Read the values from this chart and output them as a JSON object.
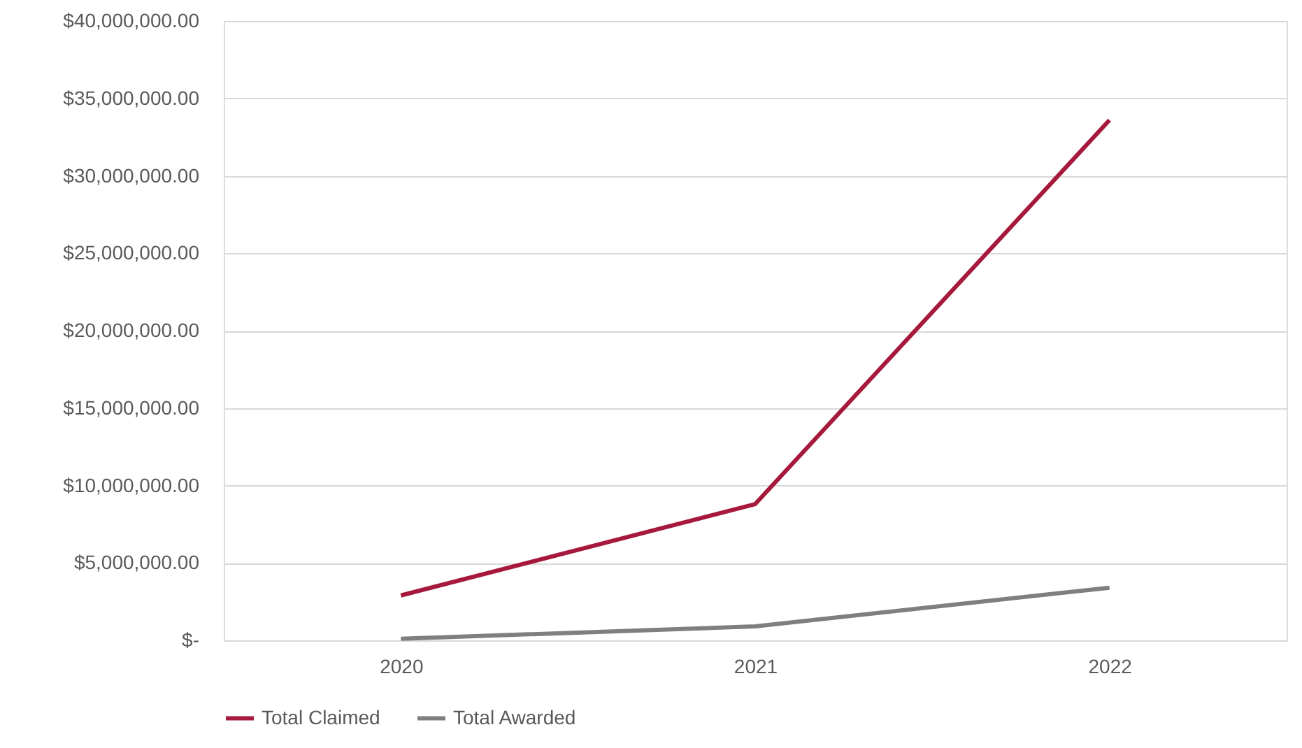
{
  "chart_data": {
    "type": "line",
    "categories": [
      "2020",
      "2021",
      "2022"
    ],
    "series": [
      {
        "name": "Total Claimed",
        "color": "#a6193c",
        "values": [
          2900000,
          8800000,
          33600000
        ]
      },
      {
        "name": "Total Awarded",
        "color": "#7f7f7f",
        "values": [
          100000,
          900000,
          3400000
        ]
      }
    ],
    "ylim": [
      0,
      40000000
    ],
    "yticks": [
      {
        "value": 0,
        "label": "$-"
      },
      {
        "value": 5000000,
        "label": "$5,000,000.00"
      },
      {
        "value": 10000000,
        "label": "$10,000,000.00"
      },
      {
        "value": 15000000,
        "label": "$15,000,000.00"
      },
      {
        "value": 20000000,
        "label": "$20,000,000.00"
      },
      {
        "value": 25000000,
        "label": "$25,000,000.00"
      },
      {
        "value": 30000000,
        "label": "$30,000,000.00"
      },
      {
        "value": 35000000,
        "label": "$35,000,000.00"
      },
      {
        "value": 40000000,
        "label": "$40,000,000.00"
      }
    ],
    "grid": "y",
    "legend": "bottom",
    "marker": "none",
    "line_style": "solid"
  }
}
